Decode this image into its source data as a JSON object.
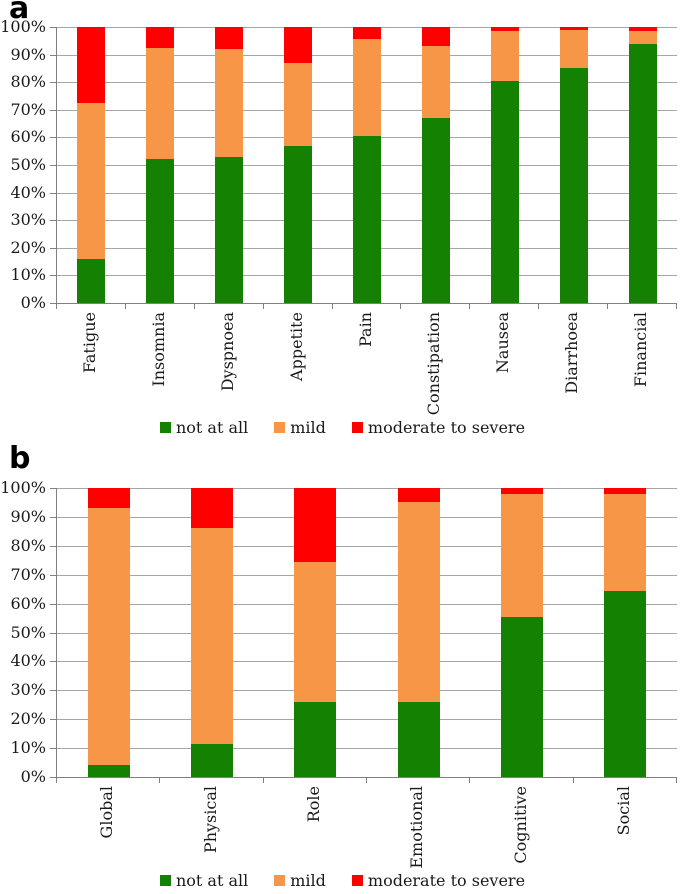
{
  "figure": {
    "background": "#FFFFFF",
    "panels": [
      {
        "label": "a",
        "chart_index": 0
      },
      {
        "label": "b",
        "chart_index": 1
      }
    ]
  },
  "colors": {
    "not_at_all": "#148102",
    "mild": "#F79646",
    "moderate_to_severe": "#FE0000",
    "gridline": "#A6A6A6",
    "axis": "#808080",
    "text": "#1A1A1A"
  },
  "chart_data": [
    {
      "type": "bar",
      "stacked": true,
      "panel": "a",
      "title": "",
      "xlabel": "",
      "ylabel": "",
      "ylim": [
        0,
        100
      ],
      "ytick_step": 10,
      "ytick_suffix": "%",
      "grid": true,
      "legend_position": "bottom",
      "categories": [
        "Fatigue",
        "Insomnia",
        "Dyspnoea",
        "Appetite",
        "Pain",
        "Constipation",
        "Nausea",
        "Diarrhoea",
        "Financial"
      ],
      "series": [
        {
          "name": "not at all",
          "color": "#148102",
          "values": [
            16,
            52,
            53,
            57,
            60.5,
            67,
            80.5,
            85,
            94
          ]
        },
        {
          "name": "mild",
          "color": "#F79646",
          "values": [
            56.5,
            40.5,
            39,
            30,
            35,
            26,
            18,
            14,
            4.5
          ]
        },
        {
          "name": "moderate to severe",
          "color": "#FE0000",
          "values": [
            27.5,
            7.5,
            8,
            13,
            4.5,
            7,
            1.5,
            1,
            1.5
          ]
        }
      ]
    },
    {
      "type": "bar",
      "stacked": true,
      "panel": "b",
      "title": "",
      "xlabel": "",
      "ylabel": "",
      "ylim": [
        0,
        100
      ],
      "ytick_step": 10,
      "ytick_suffix": "%",
      "grid": true,
      "legend_position": "bottom",
      "categories": [
        "Global",
        "Physical",
        "Role",
        "Emotional",
        "Cognitive",
        "Social"
      ],
      "series": [
        {
          "name": "not at all",
          "color": "#148102",
          "values": [
            4,
            11.5,
            26,
            26,
            55.5,
            64.5
          ]
        },
        {
          "name": "mild",
          "color": "#F79646",
          "values": [
            89,
            74.5,
            48.5,
            69,
            42.5,
            33.5
          ]
        },
        {
          "name": "moderate to severe",
          "color": "#FE0000",
          "values": [
            7,
            14,
            25.5,
            5,
            2,
            2
          ]
        }
      ]
    }
  ]
}
